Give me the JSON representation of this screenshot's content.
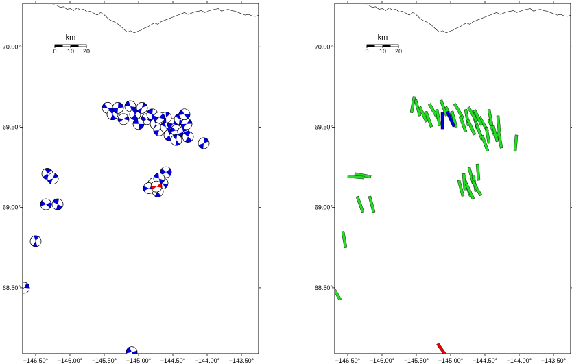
{
  "map": {
    "x_ticks": [
      "−146.50°",
      "−146.00°",
      "−145.50°",
      "−145.00°",
      "−144.50°",
      "−144.00°",
      "−143.50°"
    ],
    "y_ticks": [
      "70.00°",
      "69.50°",
      "69.00°",
      "68.50°"
    ],
    "scale_bar": {
      "unit": "km",
      "labels": [
        "0",
        "10",
        "20"
      ]
    },
    "colors": {
      "mechanism": "#0000dd",
      "highlight": "#ee0000",
      "axis_bar": "#22dd22"
    }
  },
  "panels": [
    {
      "name": "focal-mechanism-panel",
      "type": "beachballs",
      "events": [
        {
          "lon": -145.45,
          "lat": 69.62
        },
        {
          "lon": -145.38,
          "lat": 69.58
        },
        {
          "lon": -145.3,
          "lat": 69.62
        },
        {
          "lon": -145.22,
          "lat": 69.55
        },
        {
          "lon": -145.12,
          "lat": 69.63
        },
        {
          "lon": -145.05,
          "lat": 69.58
        },
        {
          "lon": -144.95,
          "lat": 69.62
        },
        {
          "lon": -144.88,
          "lat": 69.55
        },
        {
          "lon": -144.8,
          "lat": 69.58
        },
        {
          "lon": -144.75,
          "lat": 69.52
        },
        {
          "lon": -144.7,
          "lat": 69.48
        },
        {
          "lon": -144.65,
          "lat": 69.55
        },
        {
          "lon": -144.6,
          "lat": 69.5
        },
        {
          "lon": -144.55,
          "lat": 69.45
        },
        {
          "lon": -144.5,
          "lat": 69.52
        },
        {
          "lon": -144.45,
          "lat": 69.48
        },
        {
          "lon": -144.4,
          "lat": 69.55
        },
        {
          "lon": -144.35,
          "lat": 69.47
        },
        {
          "lon": -144.3,
          "lat": 69.52
        },
        {
          "lon": -144.33,
          "lat": 69.58
        },
        {
          "lon": -144.28,
          "lat": 69.44
        },
        {
          "lon": -144.6,
          "lat": 69.56
        },
        {
          "lon": -144.7,
          "lat": 69.56
        },
        {
          "lon": -145.0,
          "lat": 69.52
        },
        {
          "lon": -144.45,
          "lat": 69.42
        },
        {
          "lon": -144.05,
          "lat": 69.4
        },
        {
          "lon": -144.6,
          "lat": 69.22
        },
        {
          "lon": -144.65,
          "lat": 69.15
        },
        {
          "lon": -144.72,
          "lat": 69.1
        },
        {
          "lon": -144.78,
          "lat": 69.15
        },
        {
          "lon": -144.85,
          "lat": 69.12
        },
        {
          "lon": -144.7,
          "lat": 69.18
        },
        {
          "lon": -146.33,
          "lat": 69.21
        },
        {
          "lon": -146.25,
          "lat": 69.18
        },
        {
          "lon": -146.35,
          "lat": 69.02
        },
        {
          "lon": -146.18,
          "lat": 69.02
        },
        {
          "lon": -146.5,
          "lat": 68.79
        },
        {
          "lon": -146.67,
          "lat": 68.5
        },
        {
          "lon": -145.1,
          "lat": 68.1
        }
      ],
      "highlight": [
        {
          "lon": -144.74,
          "lat": 69.13
        }
      ]
    },
    {
      "name": "axis-orientation-panel",
      "type": "bars",
      "bars": [
        {
          "lon": -145.55,
          "lat": 69.64,
          "angle": 100
        },
        {
          "lon": -145.48,
          "lat": 69.62,
          "angle": 75
        },
        {
          "lon": -145.4,
          "lat": 69.58,
          "angle": 65
        },
        {
          "lon": -145.32,
          "lat": 69.55,
          "angle": 70
        },
        {
          "lon": -145.25,
          "lat": 69.6,
          "angle": 60
        },
        {
          "lon": -145.18,
          "lat": 69.56,
          "angle": 80
        },
        {
          "lon": -145.1,
          "lat": 69.62,
          "angle": 70
        },
        {
          "lon": -145.02,
          "lat": 69.58,
          "angle": 65
        },
        {
          "lon": -144.95,
          "lat": 69.55,
          "angle": 75
        },
        {
          "lon": -144.88,
          "lat": 69.6,
          "angle": 60
        },
        {
          "lon": -144.82,
          "lat": 69.52,
          "angle": 70
        },
        {
          "lon": -144.76,
          "lat": 69.56,
          "angle": 80
        },
        {
          "lon": -144.7,
          "lat": 69.5,
          "angle": 65
        },
        {
          "lon": -144.64,
          "lat": 69.54,
          "angle": 75
        },
        {
          "lon": -144.58,
          "lat": 69.47,
          "angle": 70
        },
        {
          "lon": -144.52,
          "lat": 69.52,
          "angle": 60
        },
        {
          "lon": -144.46,
          "lat": 69.45,
          "angle": 80
        },
        {
          "lon": -144.4,
          "lat": 69.5,
          "angle": 70
        },
        {
          "lon": -144.35,
          "lat": 69.46,
          "angle": 75
        },
        {
          "lon": -144.3,
          "lat": 69.52,
          "angle": 85
        },
        {
          "lon": -144.28,
          "lat": 69.42,
          "angle": 80
        },
        {
          "lon": -144.6,
          "lat": 69.56,
          "angle": 65
        },
        {
          "lon": -144.5,
          "lat": 69.4,
          "angle": 70
        },
        {
          "lon": -144.68,
          "lat": 69.58,
          "angle": 60
        },
        {
          "lon": -144.42,
          "lat": 69.56,
          "angle": 80
        },
        {
          "lon": -144.05,
          "lat": 69.4,
          "angle": 95
        },
        {
          "lon": -144.7,
          "lat": 69.2,
          "angle": 75
        },
        {
          "lon": -144.65,
          "lat": 69.15,
          "angle": 80
        },
        {
          "lon": -144.75,
          "lat": 69.12,
          "angle": 70
        },
        {
          "lon": -144.8,
          "lat": 69.16,
          "angle": 85
        },
        {
          "lon": -144.85,
          "lat": 69.12,
          "angle": 75
        },
        {
          "lon": -144.6,
          "lat": 69.22,
          "angle": 85
        },
        {
          "lon": -144.72,
          "lat": 69.1,
          "angle": 65
        },
        {
          "lon": -144.62,
          "lat": 69.12,
          "angle": 60
        },
        {
          "lon": -146.28,
          "lat": 69.2,
          "angle": 10
        },
        {
          "lon": -146.38,
          "lat": 69.19,
          "angle": 5
        },
        {
          "lon": -146.32,
          "lat": 69.02,
          "angle": 70
        },
        {
          "lon": -146.15,
          "lat": 69.02,
          "angle": 75
        },
        {
          "lon": -146.55,
          "lat": 68.8,
          "angle": 80
        },
        {
          "lon": -146.67,
          "lat": 68.47,
          "angle": 60
        }
      ],
      "blue_bars": [
        {
          "lon": -145.12,
          "lat": 69.54,
          "angle": 90
        },
        {
          "lon": -145.0,
          "lat": 69.55,
          "angle": 65
        }
      ],
      "red_bars": [
        {
          "lon": -145.12,
          "lat": 68.11,
          "angle": 55
        }
      ]
    }
  ]
}
